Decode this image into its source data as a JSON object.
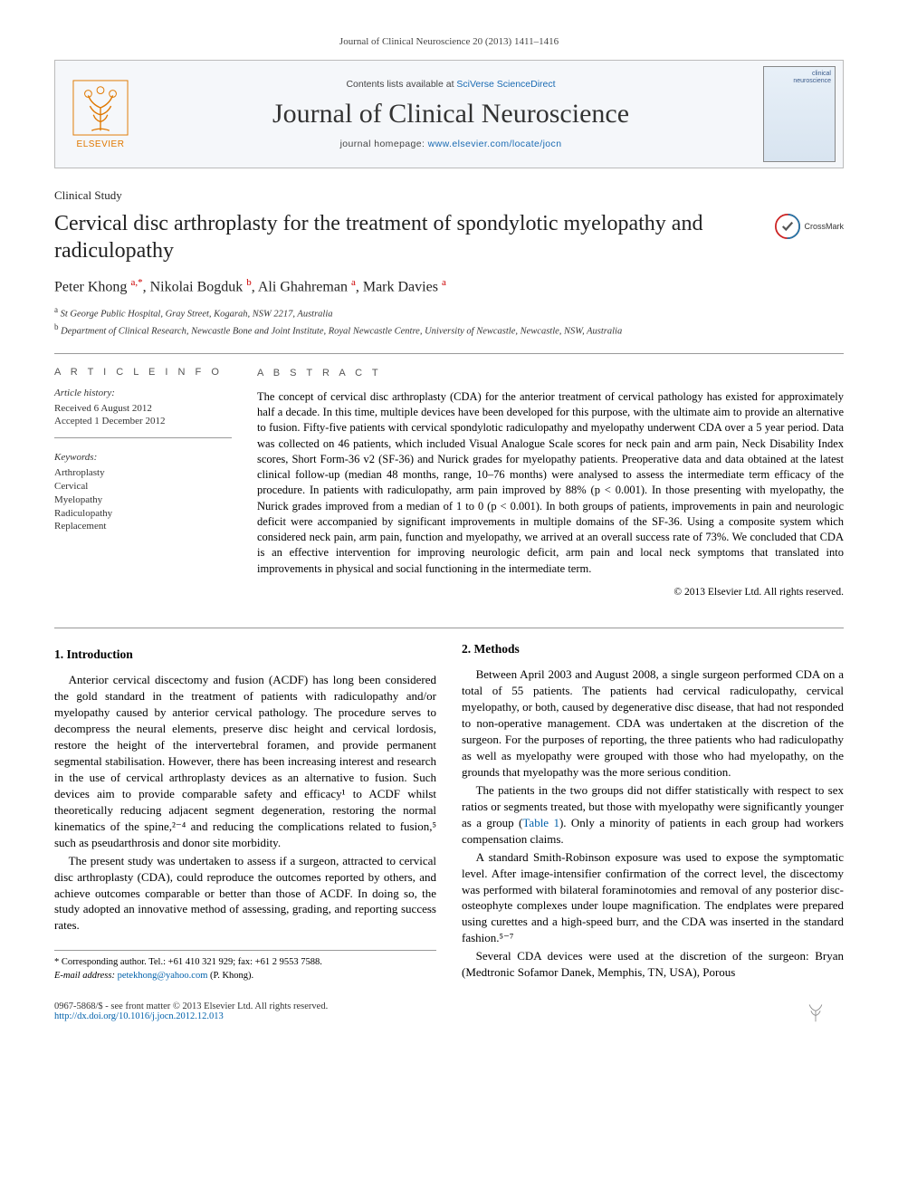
{
  "running_header": "Journal of Clinical Neuroscience 20 (2013) 1411–1416",
  "masthead": {
    "elsevier_label": "ELSEVIER",
    "contents_prefix": "Contents lists available at ",
    "contents_link": "SciVerse ScienceDirect",
    "journal_title": "Journal of Clinical Neuroscience",
    "homepage_prefix": "journal homepage: ",
    "homepage_url": "www.elsevier.com/locate/jocn",
    "cover_line1": "clinical",
    "cover_line2": "neuroscience"
  },
  "article_type": "Clinical Study",
  "article_title": "Cervical disc arthroplasty for the treatment of spondylotic myelopathy and radiculopathy",
  "crossmark_label": "CrossMark",
  "authors_html": "Peter Khong <sup>a,*</sup>, Nikolai Bogduk <sup>b</sup>, Ali Ghahreman <sup>a</sup>, Mark Davies <sup>a</sup>",
  "affiliations": [
    "a St George Public Hospital, Gray Street, Kogarah, NSW 2217, Australia",
    "b Department of Clinical Research, Newcastle Bone and Joint Institute, Royal Newcastle Centre, University of Newcastle, Newcastle, NSW, Australia"
  ],
  "info": {
    "heading": "A R T I C L E   I N F O",
    "history_head": "Article history:",
    "history_received": "Received 6 August 2012",
    "history_accepted": "Accepted 1 December 2012",
    "keywords_head": "Keywords:",
    "keywords": [
      "Arthroplasty",
      "Cervical",
      "Myelopathy",
      "Radiculopathy",
      "Replacement"
    ]
  },
  "abstract": {
    "heading": "A B S T R A C T",
    "text": "The concept of cervical disc arthroplasty (CDA) for the anterior treatment of cervical pathology has existed for approximately half a decade. In this time, multiple devices have been developed for this purpose, with the ultimate aim to provide an alternative to fusion. Fifty-five patients with cervical spondylotic radiculopathy and myelopathy underwent CDA over a 5 year period. Data was collected on 46 patients, which included Visual Analogue Scale scores for neck pain and arm pain, Neck Disability Index scores, Short Form-36 v2 (SF-36) and Nurick grades for myelopathy patients. Preoperative data and data obtained at the latest clinical follow-up (median 48 months, range, 10–76 months) were analysed to assess the intermediate term efficacy of the procedure. In patients with radiculopathy, arm pain improved by 88% (p < 0.001). In those presenting with myelopathy, the Nurick grades improved from a median of 1 to 0 (p < 0.001). In both groups of patients, improvements in pain and neurologic deficit were accompanied by significant improvements in multiple domains of the SF-36. Using a composite system which considered neck pain, arm pain, function and myelopathy, we arrived at an overall success rate of 73%. We concluded that CDA is an effective intervention for improving neurologic deficit, arm pain and local neck symptoms that translated into improvements in physical and social functioning in the intermediate term.",
    "copyright": "© 2013 Elsevier Ltd. All rights reserved."
  },
  "sections": {
    "s1_heading": "1. Introduction",
    "s1_p1": "Anterior cervical discectomy and fusion (ACDF) has long been considered the gold standard in the treatment of patients with radiculopathy and/or myelopathy caused by anterior cervical pathology. The procedure serves to decompress the neural elements, preserve disc height and cervical lordosis, restore the height of the intervertebral foramen, and provide permanent segmental stabilisation. However, there has been increasing interest and research in the use of cervical arthroplasty devices as an alternative to fusion. Such devices aim to provide comparable safety and efficacy¹ to ACDF whilst theoretically reducing adjacent segment degeneration, restoring the normal kinematics of the spine,²⁻⁴ and reducing the complications related to fusion,⁵ such as pseudarthrosis and donor site morbidity.",
    "s1_p2": "The present study was undertaken to assess if a surgeon, attracted to cervical disc arthroplasty (CDA), could reproduce the outcomes reported by others, and achieve outcomes comparable or better than those of ACDF. In doing so, the study adopted an innovative method of assessing, grading, and reporting success rates.",
    "s2_heading": "2. Methods",
    "s2_p1": "Between April 2003 and August 2008, a single surgeon performed CDA on a total of 55 patients. The patients had cervical radiculopathy, cervical myelopathy, or both, caused by degenerative disc disease, that had not responded to non-operative management. CDA was undertaken at the discretion of the surgeon. For the purposes of reporting, the three patients who had radiculopathy as well as myelopathy were grouped with those who had myelopathy, on the grounds that myelopathy was the more serious condition.",
    "s2_p2": "The patients in the two groups did not differ statistically with respect to sex ratios or segments treated, but those with myelopathy were significantly younger as a group (Table 1). Only a minority of patients in each group had workers compensation claims.",
    "s2_p3": "A standard Smith-Robinson exposure was used to expose the symptomatic level. After image-intensifier confirmation of the correct level, the discectomy was performed with bilateral foraminotomies and removal of any posterior disc-osteophyte complexes under loupe magnification. The endplates were prepared using curettes and a high-speed burr, and the CDA was inserted in the standard fashion.⁵⁻⁷",
    "s2_p4": "Several CDA devices were used at the discretion of the surgeon: Bryan (Medtronic Sofamor Danek, Memphis, TN, USA), Porous"
  },
  "footnote": {
    "corresponding": "* Corresponding author. Tel.: +61 410 321 929; fax: +61 2 9553 7588.",
    "email_label": "E-mail address:",
    "email": "petekhong@yahoo.com",
    "email_suffix": "(P. Khong)."
  },
  "footer": {
    "issn_line": "0967-5868/$ - see front matter © 2013 Elsevier Ltd. All rights reserved.",
    "doi_url": "http://dx.doi.org/10.1016/j.jocn.2012.12.013"
  },
  "colors": {
    "link": "#0060aa",
    "elsevier_orange": "#e07800",
    "rule": "#999999"
  }
}
